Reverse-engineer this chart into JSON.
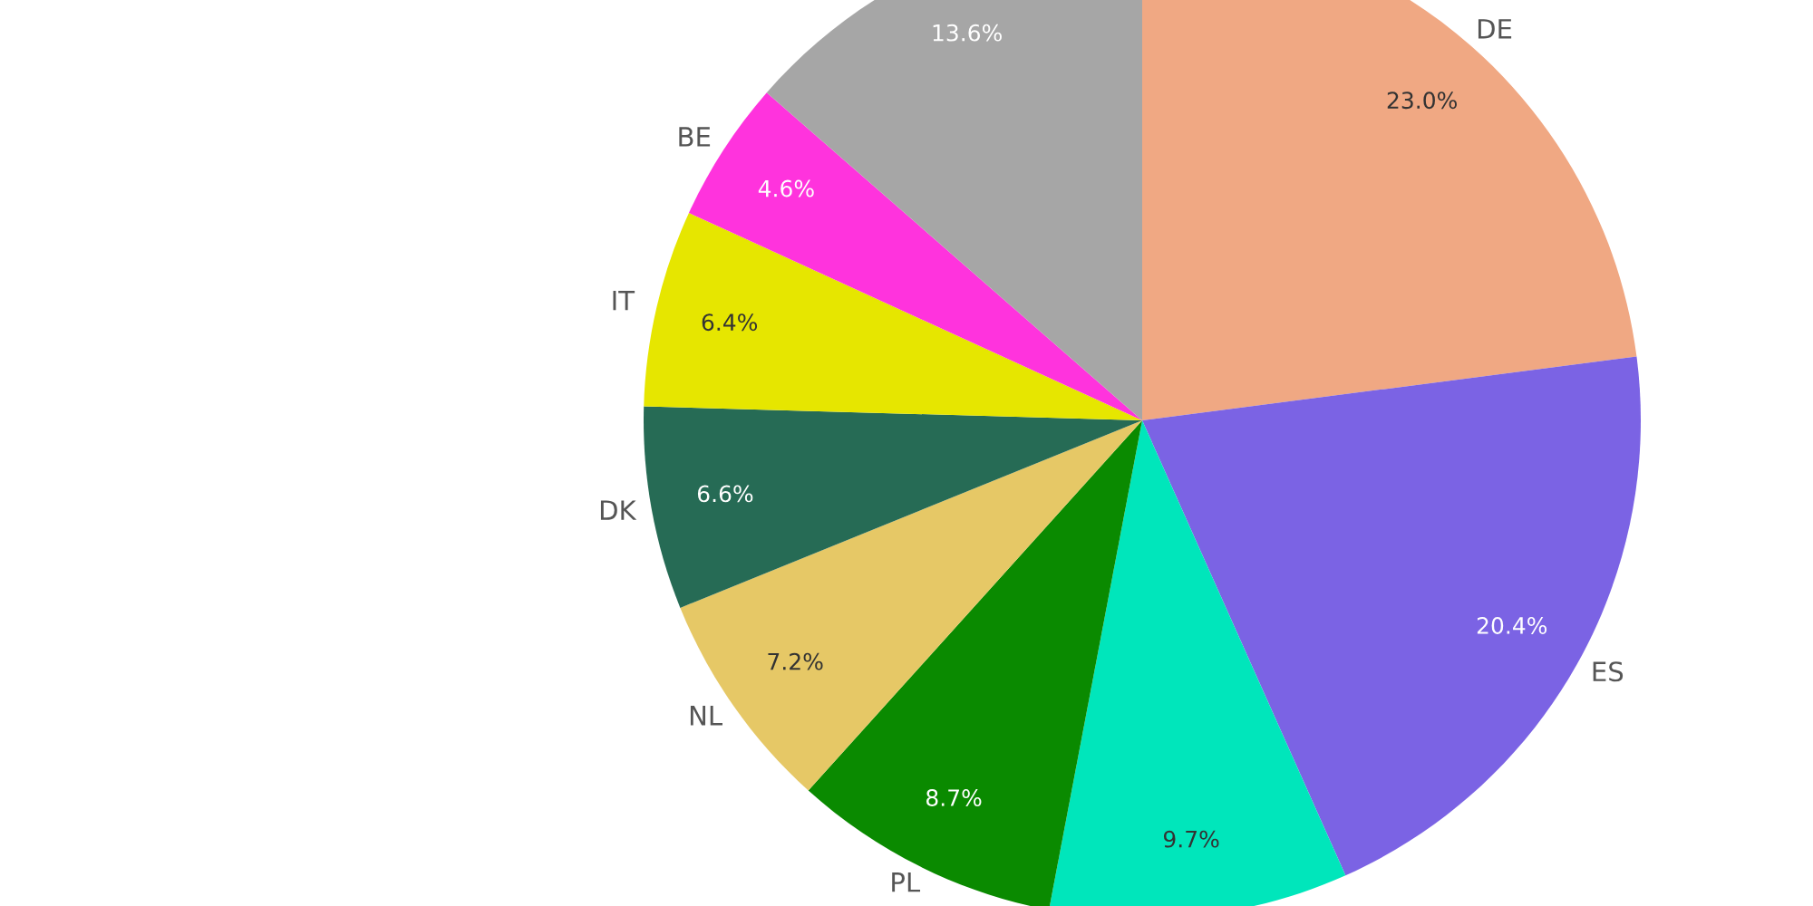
{
  "chart_data": {
    "type": "pie",
    "categories": [
      "DE",
      "ES",
      null,
      "PL",
      "NL",
      "DK",
      "IT",
      "BE",
      null
    ],
    "values": [
      23.0,
      20.4,
      9.7,
      8.7,
      7.2,
      6.6,
      6.4,
      4.6,
      13.6
    ],
    "value_labels": [
      "23.0%",
      "20.4%",
      "9.7%",
      "8.7%",
      "7.2%",
      "6.6%",
      "6.4%",
      "4.6%",
      "13.6%"
    ],
    "colors": [
      "#f0a883",
      "#7b63e4",
      "#00e6bb",
      "#0a8a00",
      "#e6c866",
      "#266b55",
      "#e6e600",
      "#ff33dd",
      "#a6a6a6"
    ]
  }
}
